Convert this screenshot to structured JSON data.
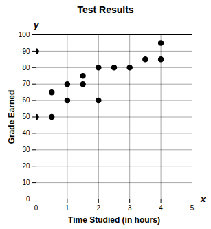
{
  "chart_data": {
    "type": "scatter",
    "title": "Test Results",
    "xlabel": "Time Studied (in hours)",
    "ylabel": "Grade Earned",
    "x_symbol": "x",
    "y_symbol": "y",
    "x": [
      0,
      0,
      0.5,
      0.5,
      1,
      1,
      1.5,
      1.5,
      2,
      2,
      2.5,
      3,
      3.5,
      4,
      4
    ],
    "values": [
      90,
      50,
      65,
      50,
      70,
      60,
      75,
      70,
      80,
      60,
      80,
      80,
      85,
      95,
      85
    ],
    "color": "#000000",
    "marker": "circle",
    "xlim": [
      0,
      5
    ],
    "xticks": [
      0,
      1,
      2,
      3,
      4,
      5
    ],
    "ylim": [
      0,
      100
    ],
    "yticks": [
      0,
      10,
      20,
      30,
      40,
      50,
      60,
      70,
      80,
      90,
      100
    ],
    "grid": true
  }
}
